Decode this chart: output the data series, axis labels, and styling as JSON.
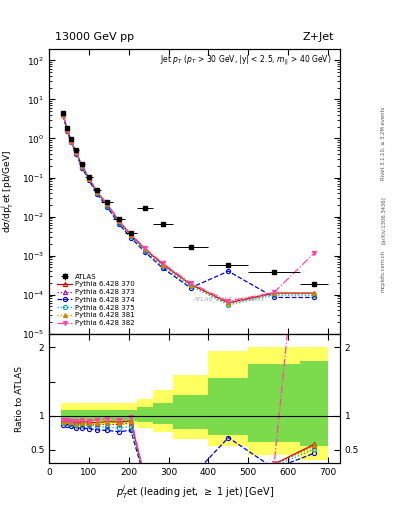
{
  "title_left": "13000 GeV pp",
  "title_right": "Z+Jet",
  "inner_title": "Jet p_{T} (p_{T} > 30 GeV, |y| < 2.5, m_{ll} > 40 GeV)",
  "watermark": "ATLAS_2017_I1514251",
  "rivet_text": "Rivet 3.1.10, ≥ 3.2M events",
  "arxiv_text": "[arXiv:1306.3436]",
  "mcplots_text": "mcplots.cern.ch",
  "pt_bins": [
    30,
    40,
    50,
    60,
    75,
    90,
    110,
    130,
    160,
    190,
    220,
    260,
    310,
    400,
    500,
    630,
    700
  ],
  "atlas_data": [
    4.5,
    1.85,
    0.95,
    0.5,
    0.22,
    0.105,
    0.048,
    0.023,
    0.0085,
    0.0037,
    0.0165,
    0.0064,
    0.0017,
    0.00059,
    0.00038,
    0.00019
  ],
  "atlas_err_lo": [
    0.3,
    0.13,
    0.07,
    0.035,
    0.015,
    0.008,
    0.004,
    0.002,
    0.0007,
    0.0003,
    0.0014,
    0.0006,
    0.00015,
    6e-05,
    4e-05,
    2e-05
  ],
  "atlas_err_hi": [
    0.3,
    0.13,
    0.07,
    0.035,
    0.015,
    0.008,
    0.004,
    0.002,
    0.0007,
    0.0003,
    0.0014,
    0.0006,
    0.00015,
    6e-05,
    4e-05,
    2e-05
  ],
  "py370_data": [
    4.2,
    1.72,
    0.87,
    0.45,
    0.2,
    0.095,
    0.043,
    0.021,
    0.0077,
    0.0034,
    0.0015,
    0.0006,
    0.000185,
    6.2e-05,
    0.00011,
    0.00011
  ],
  "py373_data": [
    4.1,
    1.68,
    0.85,
    0.44,
    0.195,
    0.092,
    0.042,
    0.02,
    0.0074,
    0.0033,
    0.00145,
    0.00058,
    0.00018,
    6e-05,
    0.000106,
    0.000106
  ],
  "py374_data": [
    3.9,
    1.6,
    0.8,
    0.41,
    0.18,
    0.085,
    0.038,
    0.018,
    0.0065,
    0.0029,
    0.00125,
    0.00048,
    0.00015,
    0.0004,
    8.5e-05,
    8.5e-05
  ],
  "py375_data": [
    4.0,
    1.64,
    0.83,
    0.43,
    0.19,
    0.09,
    0.041,
    0.019,
    0.007,
    0.0031,
    0.00135,
    0.00053,
    0.000165,
    5.5e-05,
    9.7e-05,
    9.7e-05
  ],
  "py381_data": [
    4.1,
    1.7,
    0.86,
    0.44,
    0.195,
    0.093,
    0.043,
    0.021,
    0.0076,
    0.0034,
    0.00148,
    0.00059,
    0.000182,
    6.1e-05,
    0.000108,
    0.000108
  ],
  "py382_data": [
    4.2,
    1.74,
    0.88,
    0.46,
    0.205,
    0.097,
    0.045,
    0.022,
    0.008,
    0.0036,
    0.00158,
    0.00064,
    0.0002,
    6.8e-05,
    0.000115,
    0.00115
  ],
  "ratio_yellow_lo": [
    0.86,
    0.86,
    0.86,
    0.86,
    0.86,
    0.86,
    0.86,
    0.86,
    0.86,
    0.86,
    0.82,
    0.76,
    0.65,
    0.55,
    0.42,
    0.35
  ],
  "ratio_yellow_hi": [
    1.18,
    1.18,
    1.18,
    1.18,
    1.18,
    1.18,
    1.18,
    1.18,
    1.18,
    1.18,
    1.24,
    1.38,
    1.6,
    1.95,
    2.0,
    2.0
  ],
  "ratio_green_lo": [
    0.92,
    0.92,
    0.92,
    0.92,
    0.92,
    0.92,
    0.92,
    0.92,
    0.92,
    0.92,
    0.91,
    0.87,
    0.8,
    0.72,
    0.62,
    0.55
  ],
  "ratio_green_hi": [
    1.08,
    1.08,
    1.08,
    1.08,
    1.08,
    1.08,
    1.08,
    1.08,
    1.08,
    1.08,
    1.12,
    1.18,
    1.3,
    1.55,
    1.75,
    1.8
  ],
  "color_370": "#cc0000",
  "color_373": "#aa00aa",
  "color_374": "#0000dd",
  "color_375": "#00aaaa",
  "color_381": "#cc8800",
  "color_382": "#ff44aa",
  "bg_color": "#ffffff",
  "ylim_main": [
    1e-05,
    200
  ],
  "ylim_ratio": [
    0.3,
    2.2
  ],
  "xlim": [
    0,
    730
  ]
}
